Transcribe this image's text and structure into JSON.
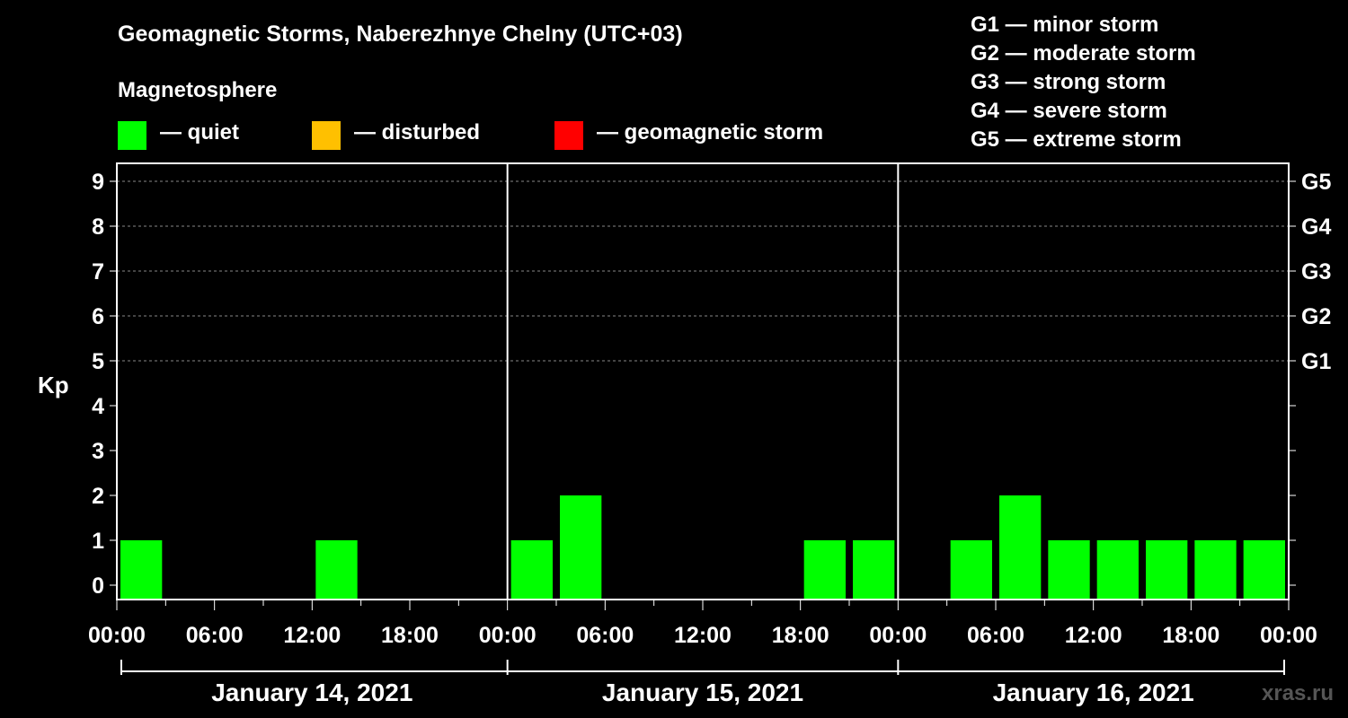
{
  "chart_data": {
    "type": "bar",
    "title": "Geomagnetic Storms, Naberezhnye Chelny (UTC+03)",
    "subtitle": "Magnetosphere",
    "ylabel": "Kp",
    "ylim": [
      0,
      9
    ],
    "yticks": [
      "0",
      "1",
      "2",
      "3",
      "4",
      "5",
      "6",
      "7",
      "8",
      "9"
    ],
    "storm_levels": [
      {
        "kp": 5,
        "label": "G1"
      },
      {
        "kp": 6,
        "label": "G2"
      },
      {
        "kp": 7,
        "label": "G3"
      },
      {
        "kp": 8,
        "label": "G4"
      },
      {
        "kp": 9,
        "label": "G5"
      }
    ],
    "legend": [
      {
        "label": "— quiet",
        "color": "#00ff00"
      },
      {
        "label": "— disturbed",
        "color": "#ffc000"
      },
      {
        "label": "— geomagnetic storm",
        "color": "#ff0000"
      }
    ],
    "scale_legend": [
      "G1 — minor storm",
      "G2 — moderate storm",
      "G3 — strong storm",
      "G4 — severe storm",
      "G5 — extreme storm"
    ],
    "days": [
      {
        "label": "January 14, 2021",
        "kp": [
          1,
          0,
          0,
          0,
          1,
          0,
          0,
          0
        ]
      },
      {
        "label": "January 15, 2021",
        "kp": [
          1,
          2,
          0,
          0,
          0,
          0,
          1,
          1
        ]
      },
      {
        "label": "January 16, 2021",
        "kp": [
          0,
          1,
          2,
          1,
          1,
          1,
          1,
          1
        ]
      }
    ],
    "xtick_labels": [
      "00:00",
      "06:00",
      "12:00",
      "18:00",
      "00:00",
      "06:00",
      "12:00",
      "18:00",
      "00:00",
      "06:00",
      "12:00",
      "18:00",
      "00:00"
    ],
    "bar_color": "#00ff00"
  },
  "credit": "xras.ru"
}
